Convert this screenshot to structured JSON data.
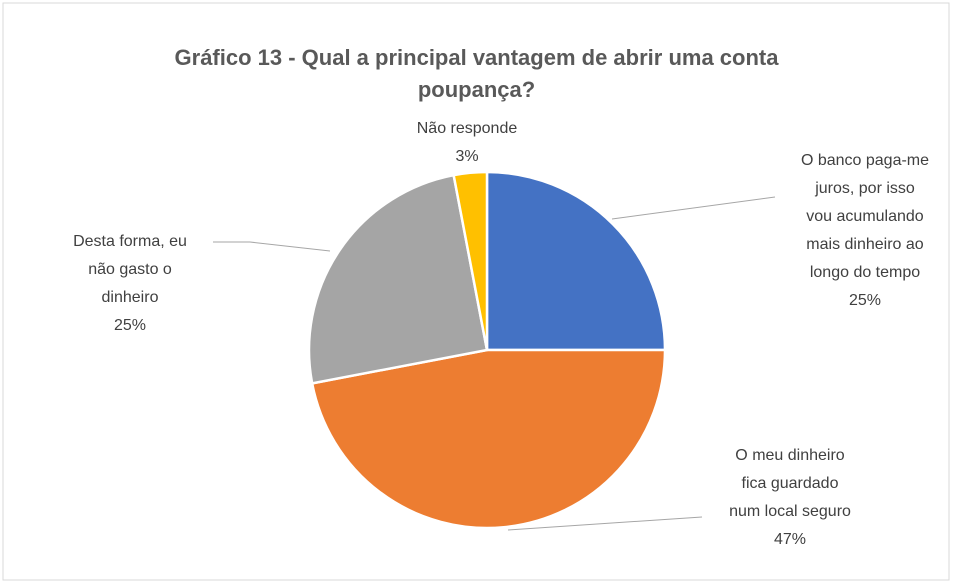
{
  "chart_data": {
    "type": "pie",
    "title": "Gráfico 13 - Qual a principal vantagem de abrir uma conta\npoupança?",
    "categories": [
      "O banco paga-me\njuros, por isso\nvou acumulando\nmais dinheiro ao\nlongo do tempo",
      "O meu dinheiro\nfica guardado\nnum local seguro",
      "Desta forma, eu\nnão gasto o\ndinheiro",
      "Não responde"
    ],
    "values": [
      25,
      47,
      25,
      3
    ],
    "value_labels": [
      "25%",
      "47%",
      "25%",
      "3%"
    ],
    "colors": [
      "#4472c4",
      "#ed7d31",
      "#a5a5a5",
      "#ffc000"
    ]
  }
}
